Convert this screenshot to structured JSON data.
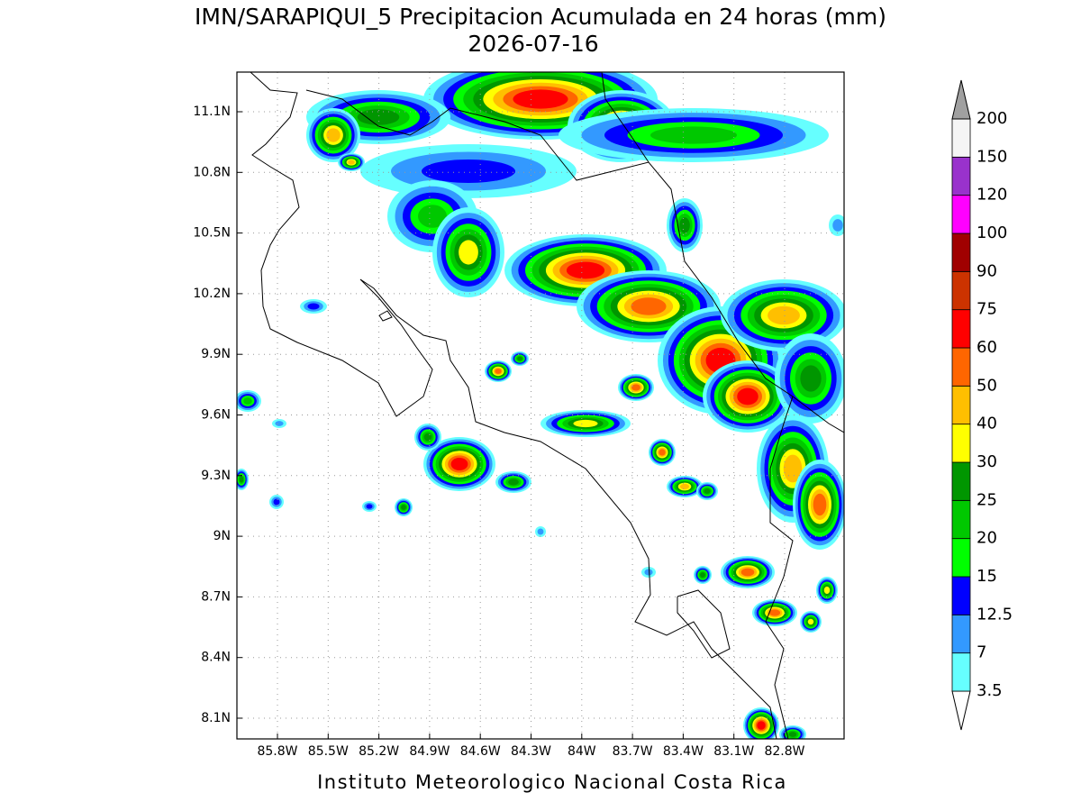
{
  "title": "IMN/SARAPIQUI_5 Precipitacion Acumulada en 24 horas (mm)",
  "subtitle": "2026-07-16",
  "x_axis": {
    "ticks": [
      "85.8W",
      "85.5W",
      "85.2W",
      "84.9W",
      "84.6W",
      "84.3W",
      "84W",
      "83.7W",
      "83.4W",
      "83.1W",
      "82.8W"
    ]
  },
  "y_axis": {
    "ticks": [
      "11.1N",
      "10.8N",
      "10.5N",
      "10.2N",
      "9.9N",
      "9.6N",
      "9.3N",
      "9N",
      "8.7N",
      "8.4N",
      "8.1N"
    ]
  },
  "legend": {
    "labels": [
      "3.5",
      "7",
      "12.5",
      "15",
      "20",
      "25",
      "30",
      "40",
      "50",
      "60",
      "75",
      "90",
      "100",
      "120",
      "150",
      "200"
    ],
    "colors": [
      "#ffffff",
      "#66ffff",
      "#3399ff",
      "#0000ff",
      "#00ff00",
      "#00c800",
      "#009600",
      "#ffff00",
      "#ffbf00",
      "#ff6600",
      "#ff0000",
      "#cc3300",
      "#a00000",
      "#ff00ff",
      "#9932cc",
      "#f5f5f5",
      "#a0a0a0"
    ]
  },
  "footer": "Instituto Meteorologico Nacional Costa Rica"
}
